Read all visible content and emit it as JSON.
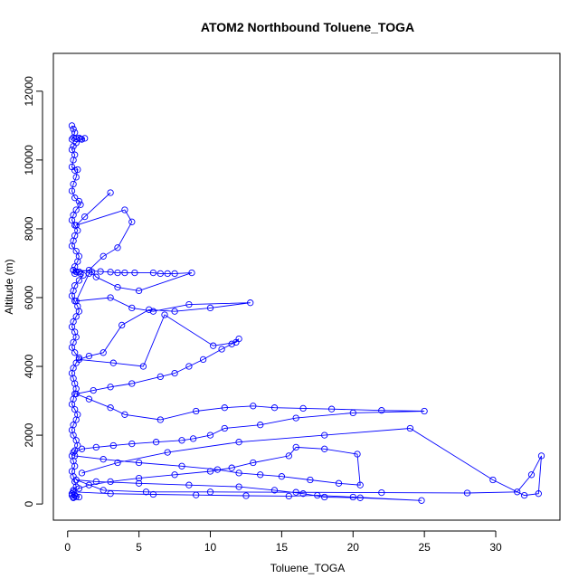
{
  "chart_data": {
    "type": "scatter",
    "title": "ATOM2 Northbound Toluene_TOGA",
    "xlabel": "Toluene_TOGA",
    "ylabel": "Altitude (m)",
    "xlim": [
      -1.0,
      34.5
    ],
    "ylim": [
      -470,
      13100
    ],
    "x_ticks": [
      0,
      5,
      10,
      15,
      20,
      25,
      30
    ],
    "y_ticks": [
      0,
      2000,
      4000,
      6000,
      8000,
      10000,
      12000
    ],
    "x_tick_labels": [
      "0",
      "5",
      "10",
      "15",
      "20",
      "25",
      "30"
    ],
    "y_tick_labels": [
      "0",
      "2000",
      "4000",
      "6000",
      "8000",
      "10000",
      "12000"
    ],
    "grid": false,
    "legend": "none",
    "marker": "open-circle",
    "connected": true,
    "color": "#0000ff",
    "series": [
      {
        "x": [
          0.3,
          0.4,
          0.5,
          0.3,
          0.4,
          0.6,
          0.8,
          1.0,
          1.2,
          0.9,
          0.6,
          0.4,
          0.3,
          0.5,
          0.4,
          0.3,
          0.5,
          0.7,
          0.6,
          0.4,
          0.3,
          0.5,
          0.8,
          0.9,
          0.6,
          0.4,
          0.3,
          0.5,
          0.7,
          0.5,
          0.4,
          0.3,
          0.6,
          0.8,
          0.7,
          0.5,
          0.4,
          0.6,
          0.9,
          1.1,
          0.8,
          0.5,
          0.4,
          0.3,
          0.5,
          0.7,
          0.8,
          0.6,
          0.4,
          0.3,
          0.5,
          0.6,
          0.4,
          0.3,
          0.5,
          0.8,
          0.6,
          0.4,
          0.3,
          0.4,
          0.5,
          0.6,
          0.5,
          0.4,
          0.3,
          0.5,
          0.7,
          0.6,
          0.4,
          0.3,
          0.4,
          0.6,
          0.7,
          0.5,
          0.3,
          0.4,
          0.5,
          0.3,
          0.4,
          0.5,
          0.6,
          0.4,
          0.3,
          0.5,
          0.8,
          0.6,
          0.4,
          0.3,
          0.4,
          0.6
        ],
        "y": [
          11000,
          10900,
          10800,
          10600,
          10650,
          10620,
          10640,
          10600,
          10630,
          10610,
          10500,
          10400,
          10300,
          10150,
          10000,
          9800,
          9700,
          9720,
          9500,
          9300,
          9100,
          8900,
          8800,
          8700,
          8550,
          8400,
          8250,
          8100,
          7950,
          7800,
          7650,
          7500,
          7350,
          7200,
          7050,
          6900,
          6800,
          6750,
          6700,
          6650,
          6500,
          6350,
          6200,
          6050,
          5900,
          5750,
          5600,
          5450,
          5300,
          5150,
          5000,
          4850,
          4700,
          4550,
          4400,
          4250,
          4100,
          3950,
          3800,
          3650,
          3500,
          3350,
          3200,
          3050,
          2900,
          2750,
          2600,
          2450,
          2300,
          2150,
          2000,
          1850,
          1700,
          1550,
          1400,
          1250,
          1100,
          950,
          800,
          650,
          500,
          400,
          300,
          250,
          200,
          220,
          180,
          250,
          200,
          210
        ]
      },
      {
        "x": [
          3.0,
          1.2,
          0.6,
          4.0,
          4.5,
          3.5,
          2.5,
          1.5,
          0.8,
          0.5,
          0.4,
          2.3,
          3.0,
          3.5,
          4.0,
          4.7,
          6.0,
          6.5,
          7.0,
          7.5,
          8.7,
          5.0,
          3.5,
          2.0,
          1.7,
          1.5,
          0.6,
          3.0,
          4.5,
          6.0,
          8.5,
          12.8,
          10.0,
          7.5,
          5.7,
          3.8,
          2.5,
          1.5,
          0.8,
          3.2,
          5.3,
          6.8,
          10.2,
          11.8,
          12.0,
          11.5,
          10.8,
          9.5,
          8.5,
          7.5,
          6.5,
          4.5,
          3.0,
          1.8,
          0.6,
          1.5,
          3.0,
          4.0,
          6.5,
          9.0,
          11.0,
          13.0,
          14.5,
          16.5,
          18.5,
          22.0,
          25.0,
          20.0,
          16.0,
          13.5,
          11.0,
          10.0,
          8.8,
          8.0,
          6.2,
          4.5,
          3.2,
          2.0,
          1.0,
          0.4,
          0.5,
          2.5,
          5.0,
          8.0,
          10.5,
          12.0,
          13.5,
          15.0,
          17.0,
          19.0,
          20.5,
          20.3,
          18.0,
          16.0,
          15.5,
          13.0,
          11.5,
          10.0,
          7.5,
          5.0,
          3.0,
          1.5,
          0.8,
          0.4,
          3.0,
          6.0,
          9.0,
          12.5,
          15.5,
          17.5,
          20.0,
          24.8,
          20.5,
          18.0,
          16.5,
          14.5,
          12.0,
          8.5,
          5.0,
          2.0,
          0.6,
          2.5,
          5.5,
          10.0,
          16.0,
          22.0,
          28.0,
          31.5,
          32.5,
          33.2,
          33.0,
          32.0,
          29.8,
          24.0,
          18.0,
          12.0,
          7.0,
          3.5,
          1.0
        ],
        "y": [
          9050,
          8350,
          8100,
          8550,
          8200,
          7450,
          7200,
          6800,
          6750,
          6700,
          6800,
          6760,
          6740,
          6720,
          6720,
          6720,
          6720,
          6700,
          6700,
          6700,
          6720,
          6200,
          6300,
          6600,
          6750,
          6700,
          5900,
          6000,
          5700,
          5600,
          5800,
          5850,
          5700,
          5600,
          5650,
          5200,
          4400,
          4300,
          4200,
          4100,
          4000,
          5500,
          4600,
          4700,
          4800,
          4650,
          4500,
          4200,
          4000,
          3800,
          3700,
          3500,
          3400,
          3300,
          3200,
          3050,
          2800,
          2600,
          2450,
          2700,
          2800,
          2850,
          2800,
          2780,
          2760,
          2720,
          2700,
          2650,
          2500,
          2300,
          2200,
          2000,
          1900,
          1850,
          1800,
          1750,
          1700,
          1650,
          1600,
          1500,
          1400,
          1300,
          1200,
          1100,
          1000,
          900,
          850,
          800,
          700,
          600,
          550,
          1450,
          1600,
          1650,
          1400,
          1200,
          1050,
          950,
          850,
          750,
          650,
          550,
          450,
          350,
          300,
          280,
          260,
          240,
          230,
          250,
          200,
          100,
          180,
          200,
          300,
          400,
          500,
          550,
          600,
          650,
          700,
          400,
          350,
          350,
          340,
          330,
          320,
          350,
          850,
          1400,
          300,
          250,
          700,
          2200,
          2000,
          1800,
          1500,
          1200,
          900
        ]
      }
    ]
  }
}
